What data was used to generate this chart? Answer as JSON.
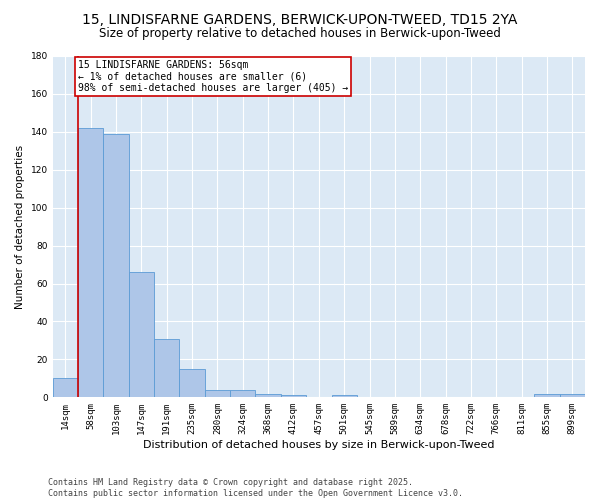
{
  "title": "15, LINDISFARNE GARDENS, BERWICK-UPON-TWEED, TD15 2YA",
  "subtitle": "Size of property relative to detached houses in Berwick-upon-Tweed",
  "xlabel": "Distribution of detached houses by size in Berwick-upon-Tweed",
  "ylabel": "Number of detached properties",
  "categories": [
    "14sqm",
    "58sqm",
    "103sqm",
    "147sqm",
    "191sqm",
    "235sqm",
    "280sqm",
    "324sqm",
    "368sqm",
    "412sqm",
    "457sqm",
    "501sqm",
    "545sqm",
    "589sqm",
    "634sqm",
    "678sqm",
    "722sqm",
    "766sqm",
    "811sqm",
    "855sqm",
    "899sqm"
  ],
  "values": [
    10,
    142,
    139,
    66,
    31,
    15,
    4,
    4,
    2,
    1,
    0,
    1,
    0,
    0,
    0,
    0,
    0,
    0,
    0,
    2,
    2
  ],
  "bar_color": "#aec6e8",
  "bar_edge_color": "#5b9bd5",
  "vline_color": "#cc0000",
  "annotation_text": "15 LINDISFARNE GARDENS: 56sqm\n← 1% of detached houses are smaller (6)\n98% of semi-detached houses are larger (405) →",
  "annotation_box_color": "#ffffff",
  "annotation_box_edge": "#cc0000",
  "ylim": [
    0,
    180
  ],
  "yticks": [
    0,
    20,
    40,
    60,
    80,
    100,
    120,
    140,
    160,
    180
  ],
  "footer": "Contains HM Land Registry data © Crown copyright and database right 2025.\nContains public sector information licensed under the Open Government Licence v3.0.",
  "plot_bg_color": "#dce9f5",
  "title_fontsize": 10,
  "subtitle_fontsize": 8.5,
  "xlabel_fontsize": 8,
  "ylabel_fontsize": 7.5,
  "tick_fontsize": 6.5,
  "footer_fontsize": 6,
  "annot_fontsize": 7
}
